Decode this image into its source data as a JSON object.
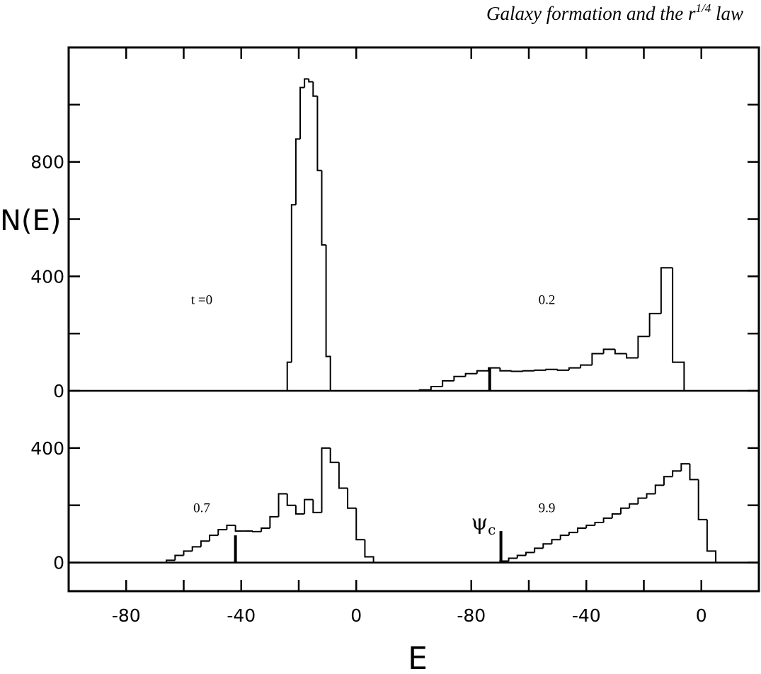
{
  "header": {
    "title": "Galaxy formation and the r",
    "title_sup": "1/4",
    "title_end": " law"
  },
  "chart_data": {
    "type": "histogram",
    "ylabel": "N(E)",
    "xlabel": "E",
    "xlim": [
      -100,
      20
    ],
    "xticks": [
      -80,
      -40,
      0
    ],
    "xminor_ticks": [
      -60,
      -20
    ],
    "rows": [
      {
        "ylim": [
          0,
          1200
        ],
        "yticks": [
          0,
          400,
          800
        ],
        "yminor_ticks": [
          200,
          600,
          1000
        ],
        "panels": [
          {
            "label": "t =0",
            "bins": [
              -24,
              -22.5,
              -21,
              -19.5,
              -18,
              -16.5,
              -15,
              -13.5,
              -12,
              -10.5,
              -9
            ],
            "counts": [
              100,
              650,
              880,
              1060,
              1090,
              1080,
              1030,
              770,
              510,
              120
            ]
          },
          {
            "label": "0.2",
            "bins": [
              -98,
              -94,
              -90,
              -86,
              -82,
              -78,
              -74,
              -70,
              -66,
              -62,
              -58,
              -54,
              -50,
              -46,
              -42,
              -38,
              -34,
              -30,
              -26,
              -22,
              -18,
              -14,
              -10,
              -6
            ],
            "counts": [
              3,
              15,
              35,
              50,
              60,
              70,
              80,
              70,
              68,
              70,
              72,
              75,
              72,
              80,
              90,
              130,
              145,
              130,
              115,
              190,
              270,
              430,
              100
            ],
            "marker": {
              "x": -73.6,
              "height": 80
            }
          }
        ]
      },
      {
        "ylim": [
          -100,
          600
        ],
        "yticks": [
          0,
          400
        ],
        "yminor_ticks": [
          200
        ],
        "panels": [
          {
            "label": "0.7",
            "bins": [
              -66,
              -63,
              -60,
              -57,
              -54,
              -51,
              -48,
              -45,
              -42,
              -39,
              -36,
              -33,
              -30,
              -27,
              -24,
              -21,
              -18,
              -15,
              -12,
              -9,
              -6,
              -3,
              0,
              3,
              6
            ],
            "counts": [
              8,
              25,
              40,
              55,
              75,
              95,
              115,
              130,
              110,
              110,
              108,
              120,
              160,
              240,
              200,
              170,
              220,
              175,
              400,
              350,
              260,
              190,
              80,
              20
            ],
            "marker": {
              "x": -42,
              "height": 95
            }
          },
          {
            "label": "9.9",
            "bins": [
              -70,
              -67,
              -64,
              -61,
              -58,
              -55,
              -52,
              -49,
              -46,
              -43,
              -40,
              -37,
              -34,
              -31,
              -28,
              -25,
              -22,
              -19,
              -16,
              -13,
              -10,
              -7,
              -4,
              -1,
              2,
              5
            ],
            "counts": [
              5,
              15,
              25,
              35,
              50,
              65,
              80,
              95,
              105,
              120,
              130,
              140,
              155,
              170,
              190,
              205,
              225,
              240,
              270,
              300,
              320,
              345,
              290,
              150,
              40
            ],
            "marker": {
              "x": -69.7,
              "height": 110,
              "label": "ψ",
              "label_sub": "c"
            }
          }
        ]
      }
    ]
  }
}
